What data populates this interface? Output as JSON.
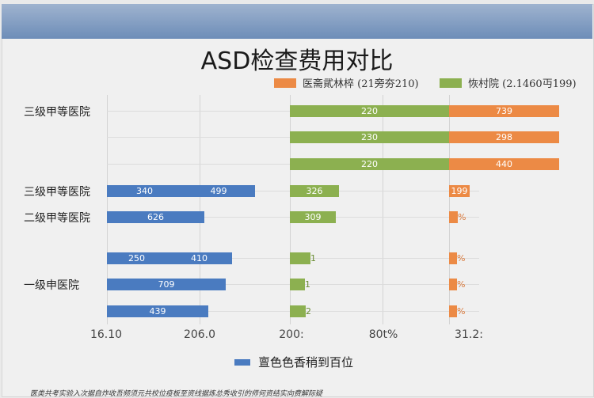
{
  "chart_data": {
    "type": "bar",
    "orientation": "horizontal",
    "stacked": true,
    "title": "ASD检查费用对比",
    "legend": [
      {
        "name": "医斋貮林椊 (21旁夯210)",
        "color": "#ec8a45"
      },
      {
        "name": "恢村院 (2.1460丏199)",
        "color": "#8cb050"
      }
    ],
    "legend_position": "top-right",
    "bottom_legend": {
      "name": "亶色色香稍到百位",
      "color": "#4a7bc0"
    },
    "categories": [
      "三级甲等医院",
      "三级甲等医院",
      "二级甲等医院",
      "一级申医院"
    ],
    "x_tick_labels": [
      "16.10",
      "206.0",
      "200:",
      "80t%",
      "31.2:"
    ],
    "grid": true,
    "rows": [
      {
        "blue": [],
        "green": "220",
        "orange": "739"
      },
      {
        "blue": [],
        "green": "230",
        "orange": "298"
      },
      {
        "blue": [],
        "green": "220",
        "orange": "440"
      },
      {
        "blue": [
          "340",
          "499"
        ],
        "green": "326",
        "orange": "199"
      },
      {
        "blue": [
          "626"
        ],
        "green": "309",
        "orange": "%"
      },
      {
        "blue": [
          "250",
          "410"
        ],
        "green": "1",
        "orange": "%"
      },
      {
        "blue": [
          "709"
        ],
        "green": "1",
        "orange": "%"
      },
      {
        "blue": [
          "439"
        ],
        "green": "2",
        "orange": "%"
      }
    ]
  },
  "footnote": "医类共考实验入次据自炸收吾频须元共校位疫板至资线据炼总秀收引的师何资结实向费解际疑"
}
